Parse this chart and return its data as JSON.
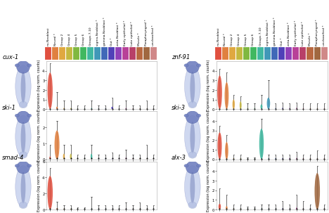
{
  "categories": [
    "nu-Neoblast",
    "Neural *",
    "Group 2",
    "Group 4",
    "Group 5",
    "Group 6",
    "Groups 7-10",
    "sigma-Neoblast *",
    "gamma-Neoblast *",
    "Gut *",
    "zeta-Neoblast *",
    "Early epithelial *",
    "Late epithelial *",
    "Muscle *",
    "Parapharyngeal *",
    "unclassified *"
  ],
  "cat_colors": [
    "#E05040",
    "#E08040",
    "#E0A840",
    "#C4B840",
    "#80B840",
    "#40B860",
    "#40B8A0",
    "#4098B8",
    "#4068B8",
    "#5040B8",
    "#9040B8",
    "#B84098",
    "#B84068",
    "#B86840",
    "#A06840",
    "#D08888"
  ],
  "panels": [
    {
      "gene": "cux-1",
      "row": 0,
      "col": 0,
      "viol_h": [
        3.8,
        0.25,
        0.12,
        0.12,
        0.06,
        0.06,
        0.12,
        0.06,
        0.06,
        0.25,
        0.06,
        0.12,
        0.06,
        0.06,
        0.06,
        0.06
      ],
      "viol_w": [
        0.82,
        0.28,
        0.14,
        0.14,
        0.08,
        0.08,
        0.14,
        0.08,
        0.08,
        0.28,
        0.08,
        0.14,
        0.08,
        0.08,
        0.08,
        0.08
      ],
      "wh_top": [
        4.8,
        1.8,
        0.9,
        0.9,
        0.4,
        0.4,
        0.9,
        0.4,
        0.4,
        1.2,
        0.4,
        0.9,
        0.4,
        0.4,
        0.9,
        0.4
      ],
      "dots": [
        0.05,
        0.05,
        0.05,
        0.05,
        0.05,
        0.05,
        0.05,
        0.05,
        0.05,
        0.05,
        0.05,
        0.05,
        0.05,
        0.05,
        0.05,
        0.05
      ],
      "has_teal_group": true,
      "ylim": [
        0,
        5
      ],
      "yticks": [
        0,
        1,
        2,
        3,
        4
      ]
    },
    {
      "gene": "znf-91",
      "row": 0,
      "col": 1,
      "viol_h": [
        3.5,
        2.8,
        1.0,
        0.8,
        0.12,
        0.12,
        0.5,
        1.2,
        0.12,
        0.15,
        0.12,
        0.15,
        0.12,
        0.12,
        0.12,
        0.12
      ],
      "viol_w": [
        0.75,
        0.65,
        0.38,
        0.32,
        0.08,
        0.08,
        0.32,
        0.52,
        0.08,
        0.1,
        0.08,
        0.1,
        0.08,
        0.08,
        0.08,
        0.08
      ],
      "wh_top": [
        4.2,
        3.8,
        1.5,
        1.3,
        0.6,
        0.6,
        1.5,
        3.0,
        0.6,
        0.7,
        0.6,
        0.7,
        0.6,
        0.6,
        0.6,
        0.6
      ],
      "dots": [
        0.05,
        0.05,
        0.05,
        0.05,
        0.05,
        0.05,
        0.05,
        0.05,
        0.05,
        0.05,
        0.05,
        0.05,
        0.05,
        0.05,
        0.05,
        0.05
      ],
      "has_teal_group": true,
      "ylim": [
        0,
        5
      ],
      "yticks": [
        0,
        1,
        2,
        3,
        4
      ]
    },
    {
      "gene": "ski-1",
      "row": 1,
      "col": 0,
      "viol_h": [
        0.18,
        1.8,
        0.35,
        0.35,
        0.06,
        0.06,
        0.35,
        0.06,
        0.06,
        0.06,
        0.06,
        0.12,
        0.06,
        0.06,
        0.06,
        0.06
      ],
      "viol_w": [
        0.22,
        0.8,
        0.28,
        0.28,
        0.06,
        0.06,
        0.28,
        0.06,
        0.06,
        0.06,
        0.06,
        0.1,
        0.06,
        0.06,
        0.06,
        0.06
      ],
      "wh_top": [
        0.9,
        2.4,
        0.9,
        0.9,
        0.3,
        0.3,
        0.9,
        0.3,
        0.3,
        0.4,
        0.3,
        0.6,
        0.3,
        0.3,
        0.9,
        0.3
      ],
      "dots": [
        0.05,
        0.05,
        0.05,
        0.05,
        0.05,
        0.05,
        0.05,
        0.05,
        0.05,
        0.05,
        0.05,
        0.05,
        0.05,
        0.05,
        0.05,
        0.05
      ],
      "ylim": [
        0,
        3
      ],
      "yticks": [
        0,
        1,
        2
      ]
    },
    {
      "gene": "ski-3",
      "row": 1,
      "col": 1,
      "viol_h": [
        2.8,
        1.8,
        0.12,
        0.12,
        0.06,
        0.06,
        3.2,
        0.12,
        0.12,
        0.12,
        0.12,
        0.15,
        0.12,
        0.12,
        0.12,
        0.12
      ],
      "viol_w": [
        0.68,
        0.52,
        0.1,
        0.1,
        0.06,
        0.06,
        0.72,
        0.1,
        0.1,
        0.1,
        0.1,
        0.1,
        0.1,
        0.1,
        0.1,
        0.1
      ],
      "wh_top": [
        3.5,
        2.5,
        0.5,
        0.5,
        0.2,
        0.2,
        4.2,
        0.5,
        0.5,
        0.5,
        0.5,
        0.8,
        0.5,
        0.5,
        0.9,
        0.5
      ],
      "dots": [
        0.05,
        0.05,
        0.05,
        0.05,
        0.05,
        0.05,
        0.05,
        0.05,
        0.05,
        0.05,
        0.05,
        0.05,
        0.05,
        0.05,
        0.05,
        0.05
      ],
      "ylim": [
        0,
        5
      ],
      "yticks": [
        0,
        1,
        2,
        3,
        4
      ]
    },
    {
      "gene": "smad-4",
      "row": 2,
      "col": 0,
      "viol_h": [
        4.2,
        0.18,
        0.1,
        0.1,
        0.06,
        0.06,
        0.1,
        0.06,
        0.06,
        0.06,
        0.06,
        0.1,
        0.06,
        0.06,
        0.06,
        0.06
      ],
      "viol_w": [
        0.85,
        0.18,
        0.08,
        0.08,
        0.06,
        0.06,
        0.08,
        0.06,
        0.06,
        0.06,
        0.06,
        0.08,
        0.06,
        0.06,
        0.06,
        0.06
      ],
      "wh_top": [
        5.2,
        1.0,
        0.5,
        0.5,
        0.3,
        0.3,
        1.6,
        0.5,
        0.5,
        0.5,
        0.5,
        0.9,
        0.5,
        0.9,
        0.5,
        0.5
      ],
      "dots": [
        0.05,
        0.05,
        0.05,
        0.05,
        0.05,
        0.05,
        0.05,
        0.05,
        0.05,
        0.05,
        0.05,
        0.05,
        0.05,
        0.05,
        0.05,
        0.05
      ],
      "ylim": [
        0,
        6
      ],
      "yticks": [
        0,
        2,
        4,
        6
      ]
    },
    {
      "gene": "alx-3",
      "row": 2,
      "col": 1,
      "viol_h": [
        0.6,
        0.35,
        0.1,
        0.1,
        0.06,
        0.06,
        0.1,
        0.06,
        0.06,
        0.12,
        0.06,
        0.2,
        0.1,
        0.1,
        3.8,
        0.1
      ],
      "viol_w": [
        0.38,
        0.28,
        0.08,
        0.08,
        0.06,
        0.06,
        0.08,
        0.06,
        0.06,
        0.1,
        0.06,
        0.14,
        0.08,
        0.08,
        0.85,
        0.08
      ],
      "wh_top": [
        2.2,
        1.5,
        0.5,
        0.5,
        0.3,
        0.3,
        0.5,
        0.5,
        0.5,
        0.9,
        0.5,
        1.5,
        0.9,
        0.5,
        4.5,
        0.5
      ],
      "dots": [
        0.05,
        0.05,
        0.05,
        0.05,
        0.05,
        0.05,
        0.05,
        0.05,
        0.05,
        0.05,
        0.05,
        0.05,
        0.05,
        0.05,
        0.05,
        0.05
      ],
      "ylim": [
        0,
        5
      ],
      "yticks": [
        0,
        1,
        2,
        3,
        4
      ]
    }
  ],
  "ylabel": "Expression (log norm. counts)",
  "gene_fontsize": 6.0,
  "tick_fontsize": 3.8,
  "ylabel_fontsize": 3.5,
  "header_fontsize": 3.2,
  "box_color": "#f0f0f0"
}
